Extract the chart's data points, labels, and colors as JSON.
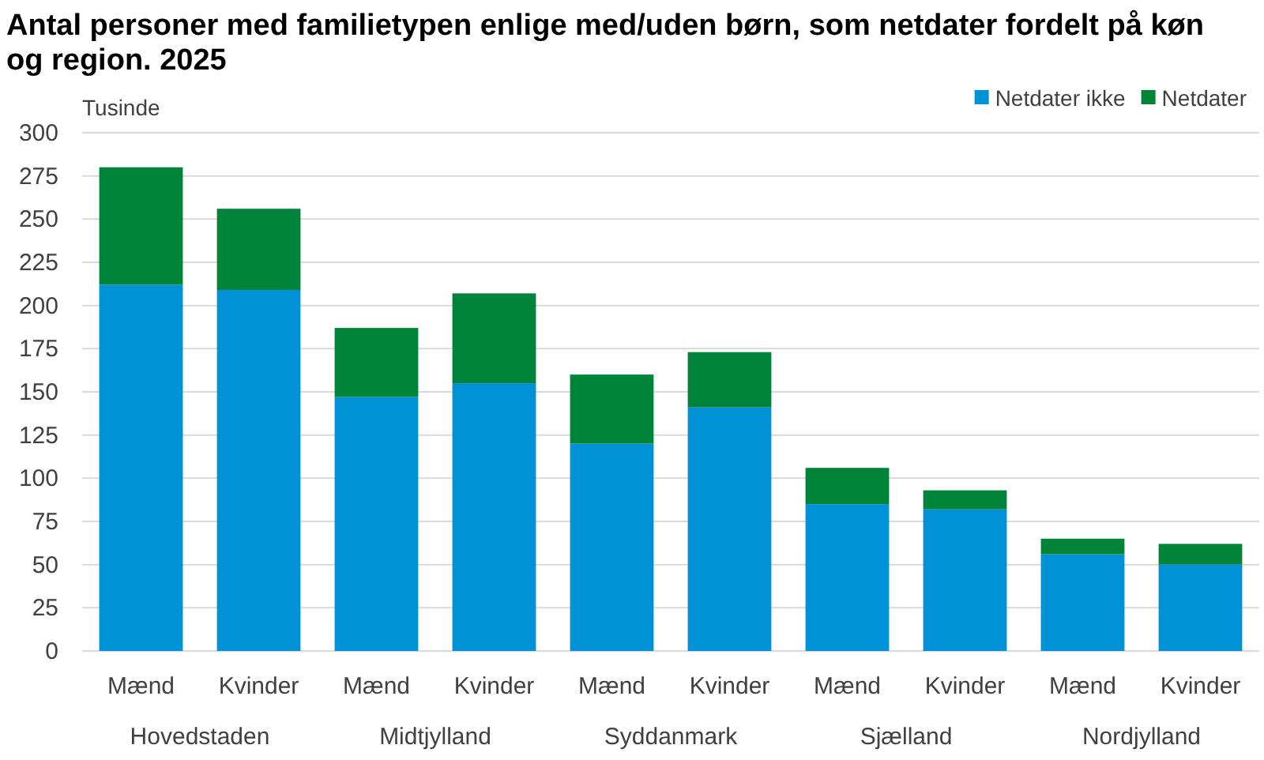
{
  "chart_data": {
    "type": "bar",
    "stacked": true,
    "title": "Antal personer med familietypen enlige med/uden børn, som netdater fordelt på køn og region. 2025",
    "ylabel": "Tusinde",
    "categories": [
      "Mænd",
      "Kvinder",
      "Mænd",
      "Kvinder",
      "Mænd",
      "Kvinder",
      "Mænd",
      "Kvinder",
      "Mænd",
      "Kvinder"
    ],
    "annotations": [
      "Hovedstaden",
      "Midtjylland",
      "Syddanmark",
      "Sjælland",
      "Nordjylland"
    ],
    "series": [
      {
        "name": "Netdater ikke",
        "color": "#0091d6",
        "values": [
          212,
          209,
          147,
          155,
          120,
          141,
          85,
          82,
          56,
          50
        ]
      },
      {
        "name": "Netdater",
        "color": "#00843a",
        "values": [
          68,
          47,
          40,
          52,
          40,
          32,
          21,
          11,
          9,
          12
        ]
      }
    ],
    "ylim": [
      0,
      300
    ],
    "yticks": [
      0,
      25,
      50,
      75,
      100,
      125,
      150,
      175,
      200,
      225,
      250,
      275,
      300
    ],
    "grid": "y",
    "legend": "top right"
  }
}
